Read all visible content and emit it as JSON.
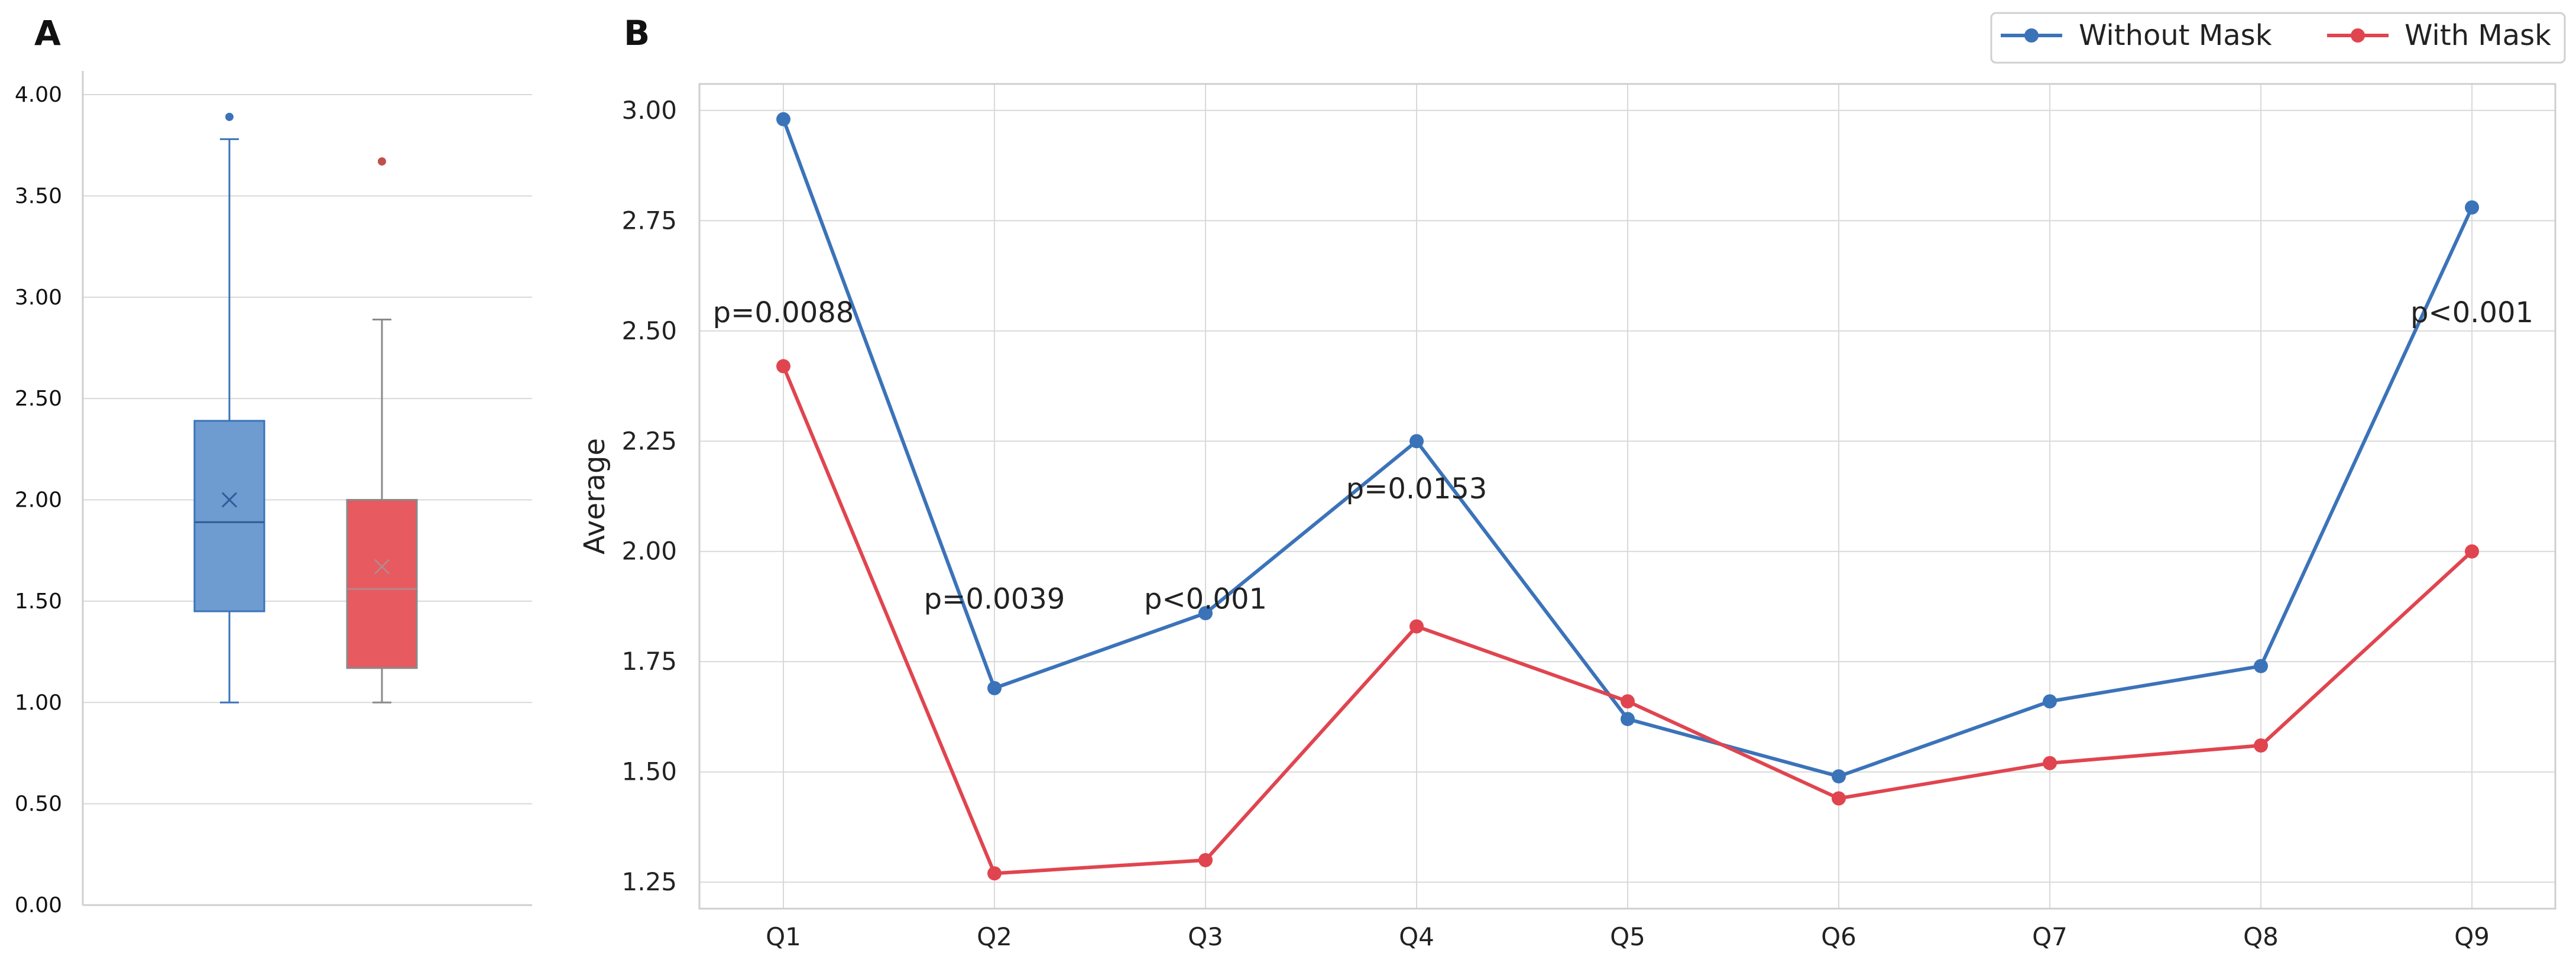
{
  "panel_a": {
    "letter": "A"
  },
  "panel_b": {
    "letter": "B"
  },
  "colors": {
    "without_mask": "#3b73b9",
    "with_mask": "#e0454f",
    "box_without": "#6e9bd0",
    "box_with": "#e65a60",
    "grid": "#d9d9d9"
  },
  "chart_data": [
    {
      "type": "box",
      "panel": "A",
      "ylim": [
        0,
        4
      ],
      "yticks": [
        "0.00",
        "0.50",
        "1.00",
        "1.50",
        "2.00",
        "2.50",
        "3.00",
        "3.50",
        "4.00"
      ],
      "ytick_values": [
        0,
        0.5,
        1.0,
        1.5,
        2.0,
        2.5,
        3.0,
        3.5,
        4.0
      ],
      "grid": true,
      "boxes": [
        {
          "series": "Without Mask",
          "whisker_low": 1.0,
          "q1": 1.45,
          "median": 1.89,
          "q3": 2.39,
          "whisker_high": 3.78,
          "mean": 2.0,
          "outliers": [
            3.89
          ]
        },
        {
          "series": "With Mask",
          "whisker_low": 1.0,
          "q1": 1.17,
          "median": 1.56,
          "q3": 2.0,
          "whisker_high": 2.89,
          "mean": 1.67,
          "outliers": [
            3.67
          ]
        }
      ]
    },
    {
      "type": "line",
      "panel": "B",
      "categories": [
        "Q1",
        "Q2",
        "Q3",
        "Q4",
        "Q5",
        "Q6",
        "Q7",
        "Q8",
        "Q9"
      ],
      "ylabel": "Average",
      "ylim": [
        1.19,
        3.06
      ],
      "yticks": [
        "1.25",
        "1.50",
        "1.75",
        "2.00",
        "2.25",
        "2.50",
        "2.75",
        "3.00"
      ],
      "ytick_values": [
        1.25,
        1.5,
        1.75,
        2.0,
        2.25,
        2.5,
        2.75,
        3.0
      ],
      "grid": true,
      "legend_position": "top-right",
      "series": [
        {
          "name": "Without Mask",
          "values": [
            2.98,
            1.69,
            1.86,
            2.25,
            1.62,
            1.49,
            1.66,
            1.74,
            2.78
          ]
        },
        {
          "name": "With Mask",
          "values": [
            2.42,
            1.27,
            1.3,
            1.83,
            1.66,
            1.44,
            1.52,
            1.56,
            2.0
          ]
        }
      ],
      "annotations": [
        {
          "text": "p=0.0088",
          "category": "Q1",
          "y": 2.52
        },
        {
          "text": "p=0.0039",
          "category": "Q2",
          "y": 1.87
        },
        {
          "text": "p<0.001",
          "category": "Q3",
          "y": 1.87
        },
        {
          "text": "p=0.0153",
          "category": "Q4",
          "y": 2.12
        },
        {
          "text": "p<0.001",
          "category": "Q9",
          "y": 2.52
        }
      ]
    }
  ]
}
